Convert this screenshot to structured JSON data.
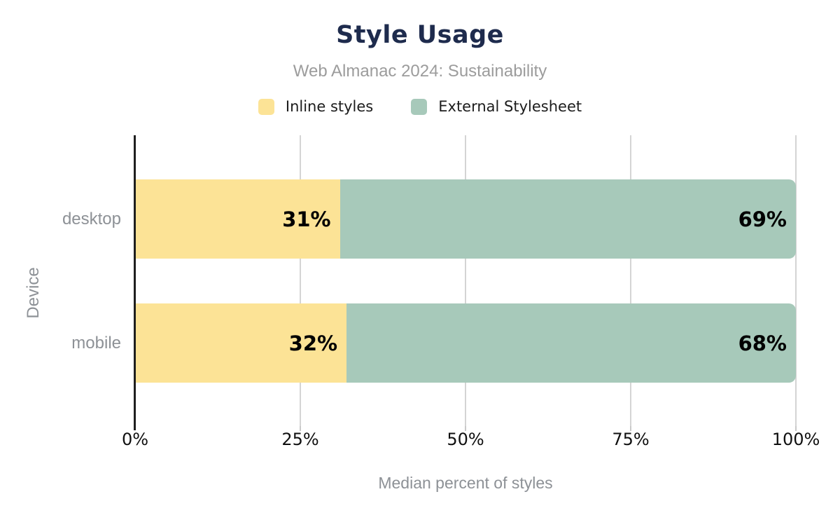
{
  "chart_data": {
    "type": "bar",
    "orientation": "horizontal",
    "stacked": true,
    "title": "Style Usage",
    "subtitle": "Web Almanac 2024: Sustainability",
    "categories": [
      "desktop",
      "mobile"
    ],
    "series": [
      {
        "name": "Inline styles",
        "color": "#FCE396",
        "values": [
          31,
          32
        ]
      },
      {
        "name": "External Stylesheet",
        "color": "#A7C9BA",
        "values": [
          69,
          68
        ]
      }
    ],
    "value_label_format": "{v}%",
    "xlabel": "Median percent of styles",
    "ylabel": "Device",
    "xlim": [
      0,
      100
    ],
    "x_ticks": [
      {
        "value": 0,
        "label": "0%"
      },
      {
        "value": 25,
        "label": "25%"
      },
      {
        "value": 50,
        "label": "50%"
      },
      {
        "value": 75,
        "label": "75%"
      },
      {
        "value": 100,
        "label": "100%"
      }
    ],
    "grid": "vertical",
    "legend_position": "top",
    "colors": {
      "title": "#1E2B4D",
      "subtitle": "#9C9C9C",
      "axis_text": "#8D9196",
      "tick_label": "#101010",
      "value_label": "#000000",
      "gridline": "#D4D4D4",
      "axis_line": "#1F1F1F",
      "background": "#FFFFFF"
    }
  }
}
